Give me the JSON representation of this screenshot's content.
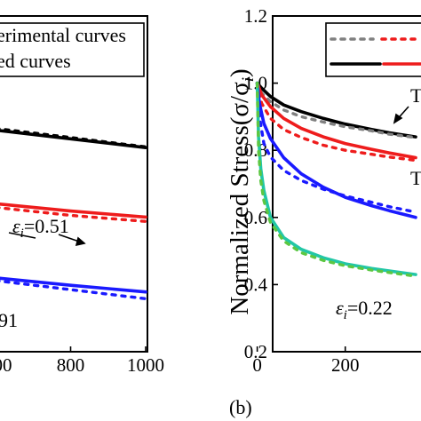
{
  "chart_data": [
    {
      "type": "line",
      "panel": "a",
      "x_ticks": [
        "00",
        "800",
        "1000"
      ],
      "xlim": [
        600,
        1000
      ],
      "ylim": [
        0.2,
        1.2
      ],
      "legend": [
        "erimental curves",
        "ed curves"
      ],
      "annotations": [
        "ε_i=0.51",
        "91"
      ],
      "series": [
        {
          "color": "#000000",
          "style": "solid",
          "x": [
            600,
            800,
            1000
          ],
          "y": [
            0.86,
            0.834,
            0.808
          ]
        },
        {
          "color": "#000000",
          "style": "dotted",
          "x": [
            600,
            800,
            1000
          ],
          "y": [
            0.865,
            0.838,
            0.81
          ]
        },
        {
          "color": "#ee1c1c",
          "style": "solid",
          "x": [
            600,
            800,
            1000
          ],
          "y": [
            0.641,
            0.619,
            0.601
          ]
        },
        {
          "color": "#ee1c1c",
          "style": "dotted",
          "x": [
            600,
            800,
            1000
          ],
          "y": [
            0.63,
            0.606,
            0.588
          ]
        },
        {
          "color": "#1a1aff",
          "style": "solid",
          "x": [
            600,
            800,
            1000
          ],
          "y": [
            0.42,
            0.398,
            0.378
          ]
        },
        {
          "color": "#1a1aff",
          "style": "dotted",
          "x": [
            600,
            800,
            1000
          ],
          "y": [
            0.412,
            0.385,
            0.358
          ]
        }
      ]
    },
    {
      "type": "line",
      "panel": "b",
      "ylabel": "Normalized Stress(σ/σ_i)",
      "y_ticks": [
        "0.2",
        "0.4",
        "0.6",
        "0.8",
        "1.0",
        "1.2"
      ],
      "x_ticks": [
        "0",
        "200"
      ],
      "ylim": [
        0.2,
        1.2
      ],
      "xlim": [
        -80,
        360
      ],
      "caption": "(b)",
      "annotations": [
        "ε_i=0.22",
        "T",
        "T"
      ],
      "series": [
        {
          "color": "#000000",
          "style": "solid",
          "x": [
            0,
            10,
            30,
            60,
            100,
            150,
            200,
            260,
            300,
            360
          ],
          "y": [
            1.0,
            0.985,
            0.96,
            0.935,
            0.915,
            0.895,
            0.878,
            0.862,
            0.852,
            0.84
          ]
        },
        {
          "color": "#808080",
          "style": "dotted",
          "x": [
            0,
            10,
            30,
            60,
            100,
            150,
            200,
            260,
            300,
            360
          ],
          "y": [
            1.0,
            0.97,
            0.945,
            0.92,
            0.9,
            0.884,
            0.87,
            0.858,
            0.848,
            0.838
          ]
        },
        {
          "color": "#ee1c1c",
          "style": "solid",
          "x": [
            0,
            10,
            30,
            60,
            100,
            150,
            200,
            260,
            300,
            360
          ],
          "y": [
            1.0,
            0.965,
            0.93,
            0.895,
            0.865,
            0.84,
            0.82,
            0.803,
            0.792,
            0.778
          ]
        },
        {
          "color": "#ee1c1c",
          "style": "dotted",
          "x": [
            0,
            10,
            30,
            60,
            100,
            150,
            200,
            260,
            300,
            360
          ],
          "y": [
            1.0,
            0.94,
            0.895,
            0.862,
            0.838,
            0.815,
            0.8,
            0.788,
            0.78,
            0.77
          ]
        },
        {
          "color": "#1a1aff",
          "style": "solid",
          "x": [
            0,
            5,
            15,
            30,
            60,
            100,
            150,
            200,
            260,
            300,
            360
          ],
          "y": [
            1.0,
            0.94,
            0.88,
            0.835,
            0.778,
            0.73,
            0.69,
            0.66,
            0.635,
            0.62,
            0.6
          ]
        },
        {
          "color": "#1a1aff",
          "style": "dotted",
          "x": [
            0,
            5,
            15,
            30,
            60,
            100,
            150,
            200,
            260,
            300,
            360
          ],
          "y": [
            1.0,
            0.9,
            0.82,
            0.78,
            0.74,
            0.71,
            0.684,
            0.664,
            0.645,
            0.632,
            0.616
          ]
        },
        {
          "color": "#22c7a6",
          "style": "solid",
          "x": [
            0,
            3,
            8,
            15,
            30,
            60,
            100,
            150,
            200,
            260,
            360
          ],
          "y": [
            1.0,
            0.84,
            0.745,
            0.68,
            0.6,
            0.54,
            0.505,
            0.48,
            0.462,
            0.448,
            0.43
          ]
        },
        {
          "color": "#5cc742",
          "style": "dotted",
          "x": [
            0,
            3,
            8,
            15,
            30,
            60,
            100,
            150,
            200,
            260,
            360
          ],
          "y": [
            1.0,
            0.8,
            0.71,
            0.65,
            0.585,
            0.53,
            0.495,
            0.472,
            0.456,
            0.443,
            0.425
          ]
        }
      ],
      "legend_samples": [
        {
          "color": "#808080",
          "style": "dotted"
        },
        {
          "color": "#ee1c1c",
          "style": "dotted"
        },
        {
          "color": "#000000",
          "style": "solid"
        },
        {
          "color": "#ee1c1c",
          "style": "solid"
        }
      ]
    }
  ]
}
